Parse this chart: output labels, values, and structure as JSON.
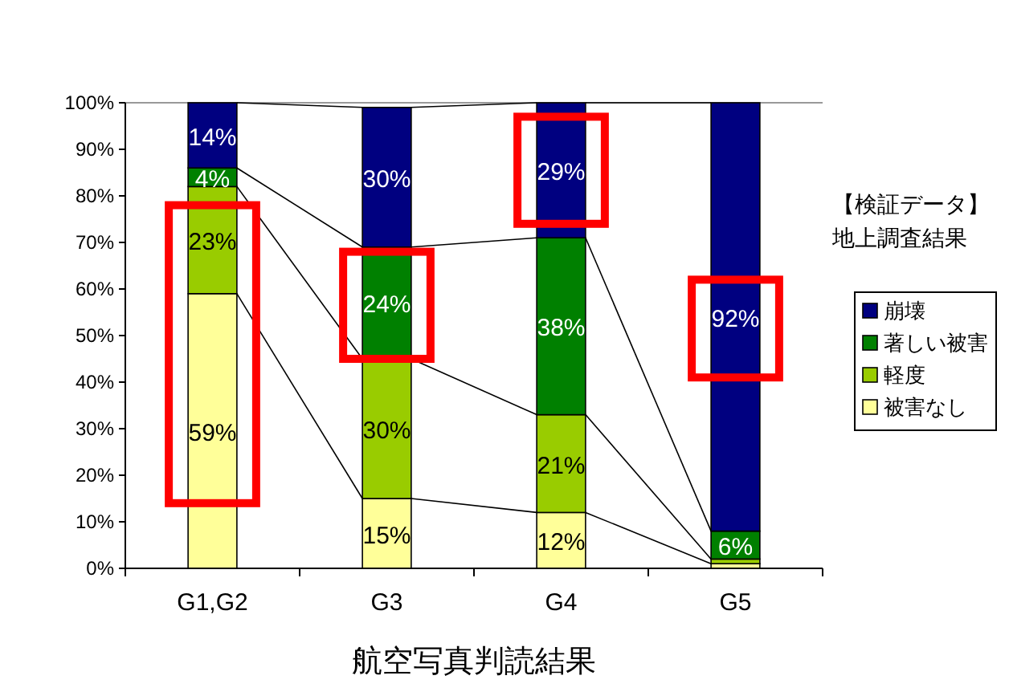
{
  "chart_data": {
    "type": "bar",
    "stacked": true,
    "xlabel": "航空写真判読結果",
    "legend_title": "【検証データ】地上調査結果",
    "legend": "right",
    "grid": false,
    "categories": [
      "G1,G2",
      "G3",
      "G4",
      "G5"
    ],
    "ylim": [
      0,
      100
    ],
    "yticks": [
      {
        "value": 0,
        "label": "0%"
      },
      {
        "value": 10,
        "label": "10%"
      },
      {
        "value": 20,
        "label": "20%"
      },
      {
        "value": 30,
        "label": "30%"
      },
      {
        "value": 40,
        "label": "40%"
      },
      {
        "value": 50,
        "label": "50%"
      },
      {
        "value": 60,
        "label": "60%"
      },
      {
        "value": 70,
        "label": "70%"
      },
      {
        "value": 80,
        "label": "80%"
      },
      {
        "value": 90,
        "label": "90%"
      },
      {
        "value": 100,
        "label": "100%"
      }
    ],
    "series": [
      {
        "name": "被害なし",
        "color": "#ffff99",
        "values": [
          59,
          15,
          12,
          1
        ],
        "value_labels": [
          "59%",
          "15%",
          "12%",
          null
        ]
      },
      {
        "name": "軽度",
        "color": "#99cc00",
        "values": [
          23,
          30,
          21,
          1
        ],
        "value_labels": [
          "23%",
          "30%",
          "21%",
          null
        ]
      },
      {
        "name": "著しい被害",
        "color": "#008000",
        "values": [
          4,
          24,
          38,
          6
        ],
        "value_labels": [
          "4%",
          "24%",
          "38%",
          "6%"
        ]
      },
      {
        "name": "崩壊",
        "color": "#000080",
        "values": [
          14,
          30,
          29,
          92
        ],
        "value_labels": [
          "14%",
          "30%",
          "29%",
          "92%"
        ]
      }
    ]
  }
}
